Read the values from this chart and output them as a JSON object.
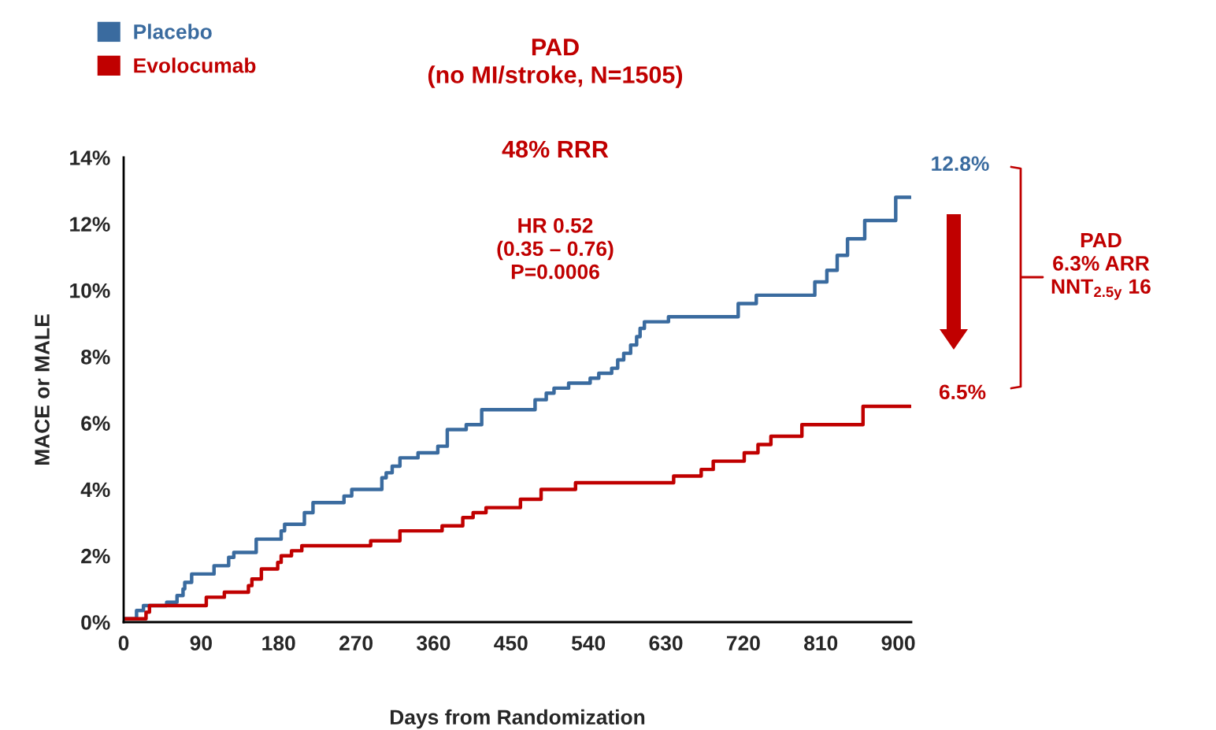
{
  "chart_data": {
    "type": "step",
    "title": "PAD\n(no MI/stroke, N=1505)",
    "xlabel": "Days from Randomization",
    "ylabel": "MACE or MALE",
    "series": [
      {
        "name": "Placebo",
        "color": "#3a6b9f",
        "x": [
          0,
          15,
          23,
          50,
          62,
          69,
          71,
          79,
          105,
          122,
          128,
          154,
          183,
          187,
          210,
          220,
          256,
          265,
          300,
          305,
          312,
          321,
          342,
          365,
          376,
          398,
          416,
          478,
          491,
          500,
          517,
          542,
          552,
          567,
          574,
          581,
          589,
          596,
          600,
          605,
          633,
          714,
          735,
          803,
          817,
          829,
          841,
          861,
          897,
          914
        ],
        "values": [
          0.1,
          0.35,
          0.5,
          0.6,
          0.8,
          1.0,
          1.2,
          1.45,
          1.7,
          1.95,
          2.1,
          2.5,
          2.75,
          2.95,
          3.3,
          3.6,
          3.8,
          4.0,
          4.35,
          4.5,
          4.7,
          4.95,
          5.1,
          5.3,
          5.8,
          5.95,
          6.4,
          6.7,
          6.9,
          7.05,
          7.2,
          7.35,
          7.5,
          7.65,
          7.9,
          8.1,
          8.35,
          8.6,
          8.85,
          9.05,
          9.2,
          9.6,
          9.85,
          10.25,
          10.6,
          11.05,
          11.55,
          12.1,
          12.8,
          12.8
        ]
      },
      {
        "name": "Evolocumab",
        "color": "#c00000",
        "x": [
          0,
          26,
          30,
          96,
          117,
          145,
          149,
          160,
          179,
          183,
          195,
          207,
          287,
          321,
          370,
          394,
          406,
          421,
          461,
          485,
          525,
          639,
          671,
          685,
          721,
          737,
          752,
          788,
          859,
          914
        ],
        "values": [
          0.1,
          0.3,
          0.5,
          0.75,
          0.9,
          1.1,
          1.3,
          1.6,
          1.8,
          2.0,
          2.15,
          2.3,
          2.45,
          2.75,
          2.9,
          3.15,
          3.3,
          3.45,
          3.7,
          4.0,
          4.2,
          4.4,
          4.6,
          4.85,
          5.1,
          5.35,
          5.6,
          5.95,
          6.5,
          6.5
        ]
      }
    ],
    "xlim": [
      0,
      915
    ],
    "xticks": [
      0,
      90,
      180,
      270,
      360,
      450,
      540,
      630,
      720,
      810,
      900
    ],
    "ylim": [
      0,
      14
    ],
    "yticks": [
      {
        "value": 0,
        "label": "0%"
      },
      {
        "value": 2,
        "label": "2%"
      },
      {
        "value": 4,
        "label": "4%"
      },
      {
        "value": 6,
        "label": "6%"
      },
      {
        "value": 8,
        "label": "8%"
      },
      {
        "value": 10,
        "label": "10%"
      },
      {
        "value": 12,
        "label": "12%"
      },
      {
        "value": 14,
        "label": "14%"
      }
    ],
    "annotations": [
      "48% RRR",
      "HR 0.52\n(0.35 – 0.76)\nP=0.0006",
      "12.8%",
      "6.5%",
      "PAD\n6.3% ARR\nNNT$_{2.5y}$ 16"
    ],
    "legend": "top left",
    "grid": false,
    "line_style": "solid",
    "marker": "none"
  }
}
